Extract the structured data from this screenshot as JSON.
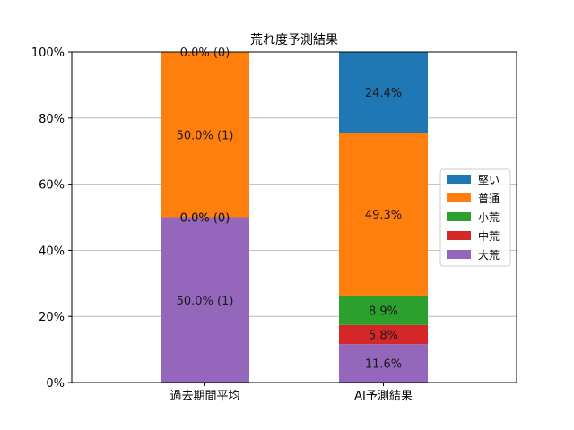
{
  "chart_data": {
    "type": "bar",
    "stacked": true,
    "title": "荒れ度予測結果",
    "xlabel": "",
    "ylabel": "",
    "ylim": [
      0,
      100
    ],
    "y_tick_labels": [
      "0%",
      "20%",
      "40%",
      "60%",
      "80%",
      "100%"
    ],
    "y_ticks": [
      0,
      20,
      40,
      60,
      80,
      100
    ],
    "grid": "horizontal",
    "legend_position": "center-right",
    "categories": [
      "過去期間平均",
      "AI予測結果"
    ],
    "series": [
      {
        "name": "大荒",
        "color": "#9467bd",
        "values": [
          50.0,
          11.6
        ],
        "labels": [
          "50.0% (1)",
          "11.6%"
        ]
      },
      {
        "name": "中荒",
        "color": "#d62728",
        "values": [
          0.0,
          5.8
        ],
        "labels": [
          "0.0% (0)",
          "5.8%"
        ]
      },
      {
        "name": "小荒",
        "color": "#2ca02c",
        "values": [
          0.0,
          8.9
        ],
        "labels": [
          "0.0% (0)",
          "8.9%"
        ]
      },
      {
        "name": "普通",
        "color": "#ff7f0e",
        "values": [
          50.0,
          49.3
        ],
        "labels": [
          "50.0% (1)",
          "49.3%"
        ]
      },
      {
        "name": "堅い",
        "color": "#1f77b4",
        "values": [
          0.0,
          24.4
        ],
        "labels": [
          "0.0% (0)",
          "24.4%"
        ]
      }
    ],
    "legend_order": [
      "堅い",
      "普通",
      "小荒",
      "中荒",
      "大荒"
    ]
  }
}
